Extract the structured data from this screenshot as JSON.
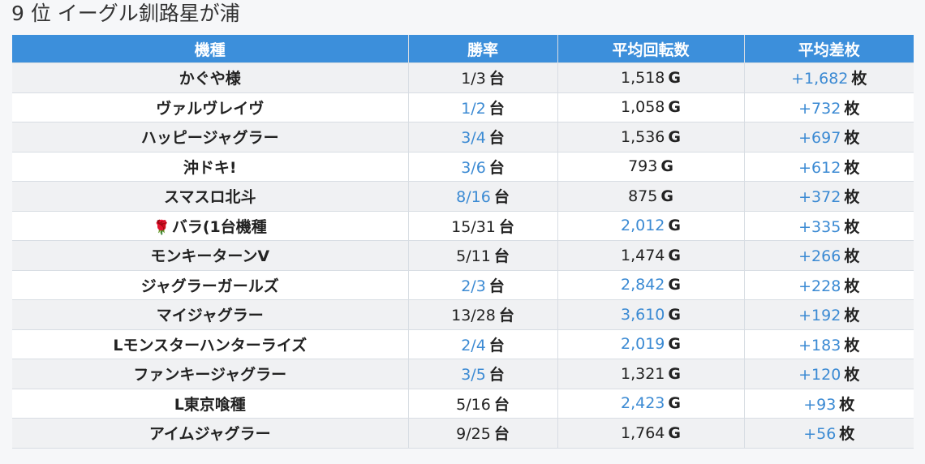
{
  "title": "9 位 イーグル釧路星が浦",
  "colors": {
    "header_bg": "#3c8fdb",
    "highlight": "#3b8ad3",
    "row_alt": "#f0f1f3"
  },
  "headers": [
    "機種",
    "勝率",
    "平均回転数",
    "平均差枚"
  ],
  "rows": [
    {
      "machine": "かぐや様",
      "icon": "",
      "win": "1/3",
      "win_unit": "台",
      "win_hl": false,
      "spins": "1,518",
      "spins_unit": "G",
      "spins_hl": false,
      "diff": "+1,682",
      "diff_unit": "枚",
      "diff_hl": true
    },
    {
      "machine": "ヴァルヴレイヴ",
      "icon": "",
      "win": "1/2",
      "win_unit": "台",
      "win_hl": true,
      "spins": "1,058",
      "spins_unit": "G",
      "spins_hl": false,
      "diff": "+732",
      "diff_unit": "枚",
      "diff_hl": true
    },
    {
      "machine": "ハッピージャグラー",
      "icon": "",
      "win": "3/4",
      "win_unit": "台",
      "win_hl": true,
      "spins": "1,536",
      "spins_unit": "G",
      "spins_hl": false,
      "diff": "+697",
      "diff_unit": "枚",
      "diff_hl": true
    },
    {
      "machine": "沖ドキ!",
      "icon": "",
      "win": "3/6",
      "win_unit": "台",
      "win_hl": true,
      "spins": "793",
      "spins_unit": "G",
      "spins_hl": false,
      "diff": "+612",
      "diff_unit": "枚",
      "diff_hl": true
    },
    {
      "machine": "スマスロ北斗",
      "icon": "",
      "win": "8/16",
      "win_unit": "台",
      "win_hl": true,
      "spins": "875",
      "spins_unit": "G",
      "spins_hl": false,
      "diff": "+372",
      "diff_unit": "枚",
      "diff_hl": true
    },
    {
      "machine": "バラ(1台機種",
      "icon": "🌹",
      "win": "15/31",
      "win_unit": "台",
      "win_hl": false,
      "spins": "2,012",
      "spins_unit": "G",
      "spins_hl": true,
      "diff": "+335",
      "diff_unit": "枚",
      "diff_hl": true
    },
    {
      "machine": "モンキーターンV",
      "icon": "",
      "win": "5/11",
      "win_unit": "台",
      "win_hl": false,
      "spins": "1,474",
      "spins_unit": "G",
      "spins_hl": false,
      "diff": "+266",
      "diff_unit": "枚",
      "diff_hl": true
    },
    {
      "machine": "ジャグラーガールズ",
      "icon": "",
      "win": "2/3",
      "win_unit": "台",
      "win_hl": true,
      "spins": "2,842",
      "spins_unit": "G",
      "spins_hl": true,
      "diff": "+228",
      "diff_unit": "枚",
      "diff_hl": true
    },
    {
      "machine": "マイジャグラー",
      "icon": "",
      "win": "13/28",
      "win_unit": "台",
      "win_hl": false,
      "spins": "3,610",
      "spins_unit": "G",
      "spins_hl": true,
      "diff": "+192",
      "diff_unit": "枚",
      "diff_hl": true
    },
    {
      "machine": "Lモンスターハンターライズ",
      "icon": "",
      "win": "2/4",
      "win_unit": "台",
      "win_hl": true,
      "spins": "2,019",
      "spins_unit": "G",
      "spins_hl": true,
      "diff": "+183",
      "diff_unit": "枚",
      "diff_hl": true
    },
    {
      "machine": "ファンキージャグラー",
      "icon": "",
      "win": "3/5",
      "win_unit": "台",
      "win_hl": true,
      "spins": "1,321",
      "spins_unit": "G",
      "spins_hl": false,
      "diff": "+120",
      "diff_unit": "枚",
      "diff_hl": true
    },
    {
      "machine": "L東京喰種",
      "icon": "",
      "win": "5/16",
      "win_unit": "台",
      "win_hl": false,
      "spins": "2,423",
      "spins_unit": "G",
      "spins_hl": true,
      "diff": "+93",
      "diff_unit": "枚",
      "diff_hl": true
    },
    {
      "machine": "アイムジャグラー",
      "icon": "",
      "win": "9/25",
      "win_unit": "台",
      "win_hl": false,
      "spins": "1,764",
      "spins_unit": "G",
      "spins_hl": false,
      "diff": "+56",
      "diff_unit": "枚",
      "diff_hl": true
    }
  ]
}
